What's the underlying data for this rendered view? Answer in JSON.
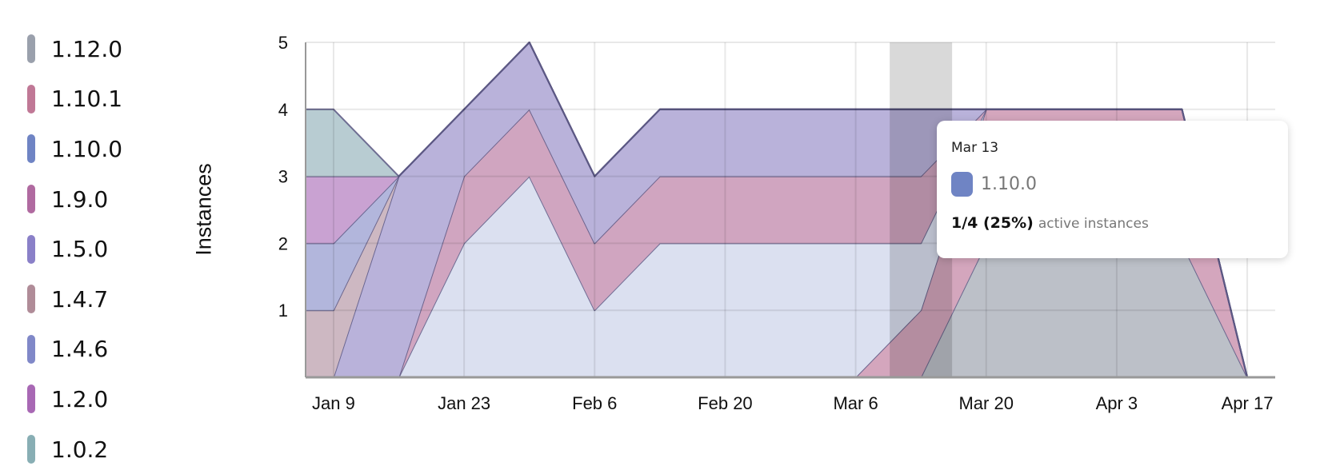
{
  "chart_data": {
    "type": "area",
    "stacked": true,
    "ylabel": "Instances",
    "ylim": [
      0,
      5
    ],
    "yticks": [
      "1",
      "2",
      "3",
      "4",
      "5"
    ],
    "xlim": [
      "Jan 6",
      "Apr 20"
    ],
    "xticks": [
      "Jan 9",
      "Jan 23",
      "Feb 6",
      "Feb 20",
      "Mar 6",
      "Mar 20",
      "Apr 3",
      "Apr 17"
    ],
    "grid": true,
    "legend_position": "left",
    "x": [
      "Jan 6",
      "Jan 9",
      "Jan 16",
      "Jan 23",
      "Jan 30",
      "Feb 6",
      "Feb 13",
      "Feb 20",
      "Feb 27",
      "Mar 6",
      "Mar 13",
      "Mar 20",
      "Mar 27",
      "Apr 3",
      "Apr 10",
      "Apr 17",
      "Apr 20"
    ],
    "series": [
      {
        "name": "1.12.0",
        "color": "#9aa0ac",
        "fill": "#bcc0c8",
        "values": [
          0,
          0,
          0,
          0,
          0,
          0,
          0,
          0,
          0,
          0,
          0,
          2,
          2,
          2,
          2,
          0,
          0
        ]
      },
      {
        "name": "1.10.1",
        "color": "#c07896",
        "fill": "#d4a6bd",
        "values": [
          0,
          0,
          0,
          0,
          0,
          0,
          0,
          0,
          0,
          0,
          1,
          2,
          2,
          2,
          2,
          0,
          0
        ]
      },
      {
        "name": "1.10.0",
        "color": "#6f84c4",
        "fill": "#dbe0f0",
        "values": [
          0,
          0,
          0,
          2,
          3,
          1,
          2,
          2,
          2,
          2,
          1,
          0,
          0,
          0,
          0,
          0,
          0
        ]
      },
      {
        "name": "1.9.0",
        "color": "#b06aa0",
        "fill": "#d0a5c0",
        "values": [
          0,
          0,
          0,
          1,
          1,
          1,
          1,
          1,
          1,
          1,
          1,
          0,
          0,
          0,
          0,
          0,
          0
        ]
      },
      {
        "name": "1.5.0",
        "color": "#8a80c8",
        "fill": "#b9b2da",
        "values": [
          0,
          0,
          3,
          1,
          1,
          1,
          1,
          1,
          1,
          1,
          1,
          0,
          0,
          0,
          0,
          0,
          0
        ]
      },
      {
        "name": "1.4.7",
        "color": "#b08c98",
        "fill": "#cdb8c2",
        "values": [
          1,
          1,
          0,
          0,
          0,
          0,
          0,
          0,
          0,
          0,
          0,
          0,
          0,
          0,
          0,
          0,
          0
        ]
      },
      {
        "name": "1.4.6",
        "color": "#8088c8",
        "fill": "#b2b6dc",
        "values": [
          1,
          1,
          0,
          0,
          0,
          0,
          0,
          0,
          0,
          0,
          0,
          0,
          0,
          0,
          0,
          0,
          0
        ]
      },
      {
        "name": "1.2.0",
        "color": "#a868b4",
        "fill": "#c9a2d2",
        "values": [
          1,
          1,
          0,
          0,
          0,
          0,
          0,
          0,
          0,
          0,
          0,
          0,
          0,
          0,
          0,
          0,
          0
        ]
      },
      {
        "name": "1.0.2",
        "color": "#88aeb4",
        "fill": "#b8ccd2",
        "values": [
          1,
          1,
          0,
          0,
          0,
          0,
          0,
          0,
          0,
          0,
          0,
          0,
          0,
          0,
          0,
          0,
          0
        ]
      }
    ],
    "hover": {
      "date": "Mar 13"
    }
  },
  "tooltip": {
    "date": "Mar 13",
    "version": "1.10.0",
    "color": "#6f84c4",
    "count": "1/4 (25%)",
    "suffix": "active instances"
  }
}
